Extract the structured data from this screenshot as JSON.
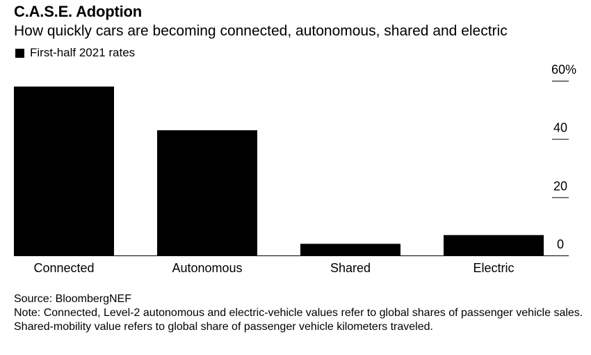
{
  "header": {
    "title": "C.A.S.E. Adoption",
    "subtitle": "How quickly cars are becoming connected, autonomous, shared and electric"
  },
  "legend": {
    "label": "First-half 2021 rates",
    "color": "#000000"
  },
  "chart_data": {
    "type": "bar",
    "categories": [
      "Connected",
      "Autonomous",
      "Shared",
      "Electric"
    ],
    "series": [
      {
        "name": "First-half 2021 rates",
        "values": [
          58,
          43,
          4,
          7
        ]
      }
    ],
    "ylim": [
      0,
      60
    ],
    "yticks": [
      0,
      20,
      40,
      60
    ],
    "ytick_labels": [
      "0",
      "20",
      "40",
      "60%"
    ],
    "yaxis_position": "right",
    "bar_color": "#000000",
    "grid": false
  },
  "footer": {
    "source": "Source: BloombergNEF",
    "note": "Note: Connected, Level-2 autonomous and electric-vehicle values refer to global shares of passenger vehicle sales. Shared-mobility value refers to global share of passenger vehicle kilometers traveled."
  }
}
